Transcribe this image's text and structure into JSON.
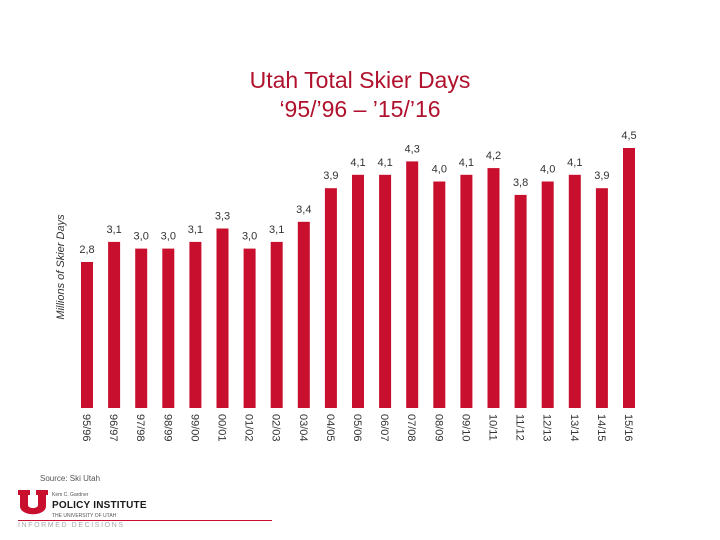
{
  "chart_data": {
    "type": "bar",
    "title": [
      "Utah Total Skier Days",
      "‘95/’96 – ’15/’16"
    ],
    "ylabel": "Millions of Skier Days",
    "categories": [
      "95/96",
      "96/97",
      "97/98",
      "98/99",
      "99/00",
      "00/01",
      "01/02",
      "02/03",
      "03/04",
      "04/05",
      "05/06",
      "06/07",
      "07/08",
      "08/09",
      "09/10",
      "10/11",
      "11/12",
      "12/13",
      "13/14",
      "14/15",
      "15/16"
    ],
    "values": [
      2.8,
      3.1,
      3.0,
      3.0,
      3.1,
      3.3,
      3.0,
      3.1,
      3.4,
      3.9,
      4.1,
      4.1,
      4.3,
      4.0,
      4.1,
      4.2,
      3.8,
      4.0,
      4.1,
      3.9,
      4.5
    ],
    "labels": [
      "2,8",
      "3,1",
      "3,0",
      "3,0",
      "3,1",
      "3,3",
      "3,0",
      "3,1",
      "3,4",
      "3,9",
      "4,1",
      "4,1",
      "4,3",
      "4,0",
      "4,1",
      "4,2",
      "3,8",
      "4,0",
      "4,1",
      "3,9",
      "4,5"
    ],
    "bar_color": "#c8102e",
    "grid": false,
    "legend": "none"
  },
  "footer": {
    "source": "Source: Ski Utah",
    "org_line1": "Kem C. Gardner",
    "org_line2": "POLICY INSTITUTE",
    "org_line3": "THE UNIVERSITY OF UTAH",
    "tagline": "INFORMED DECISIONS"
  },
  "colors": {
    "title": "#b0112c",
    "accent": "#c8102e"
  },
  "icons": {
    "logo": "block-u-icon"
  }
}
